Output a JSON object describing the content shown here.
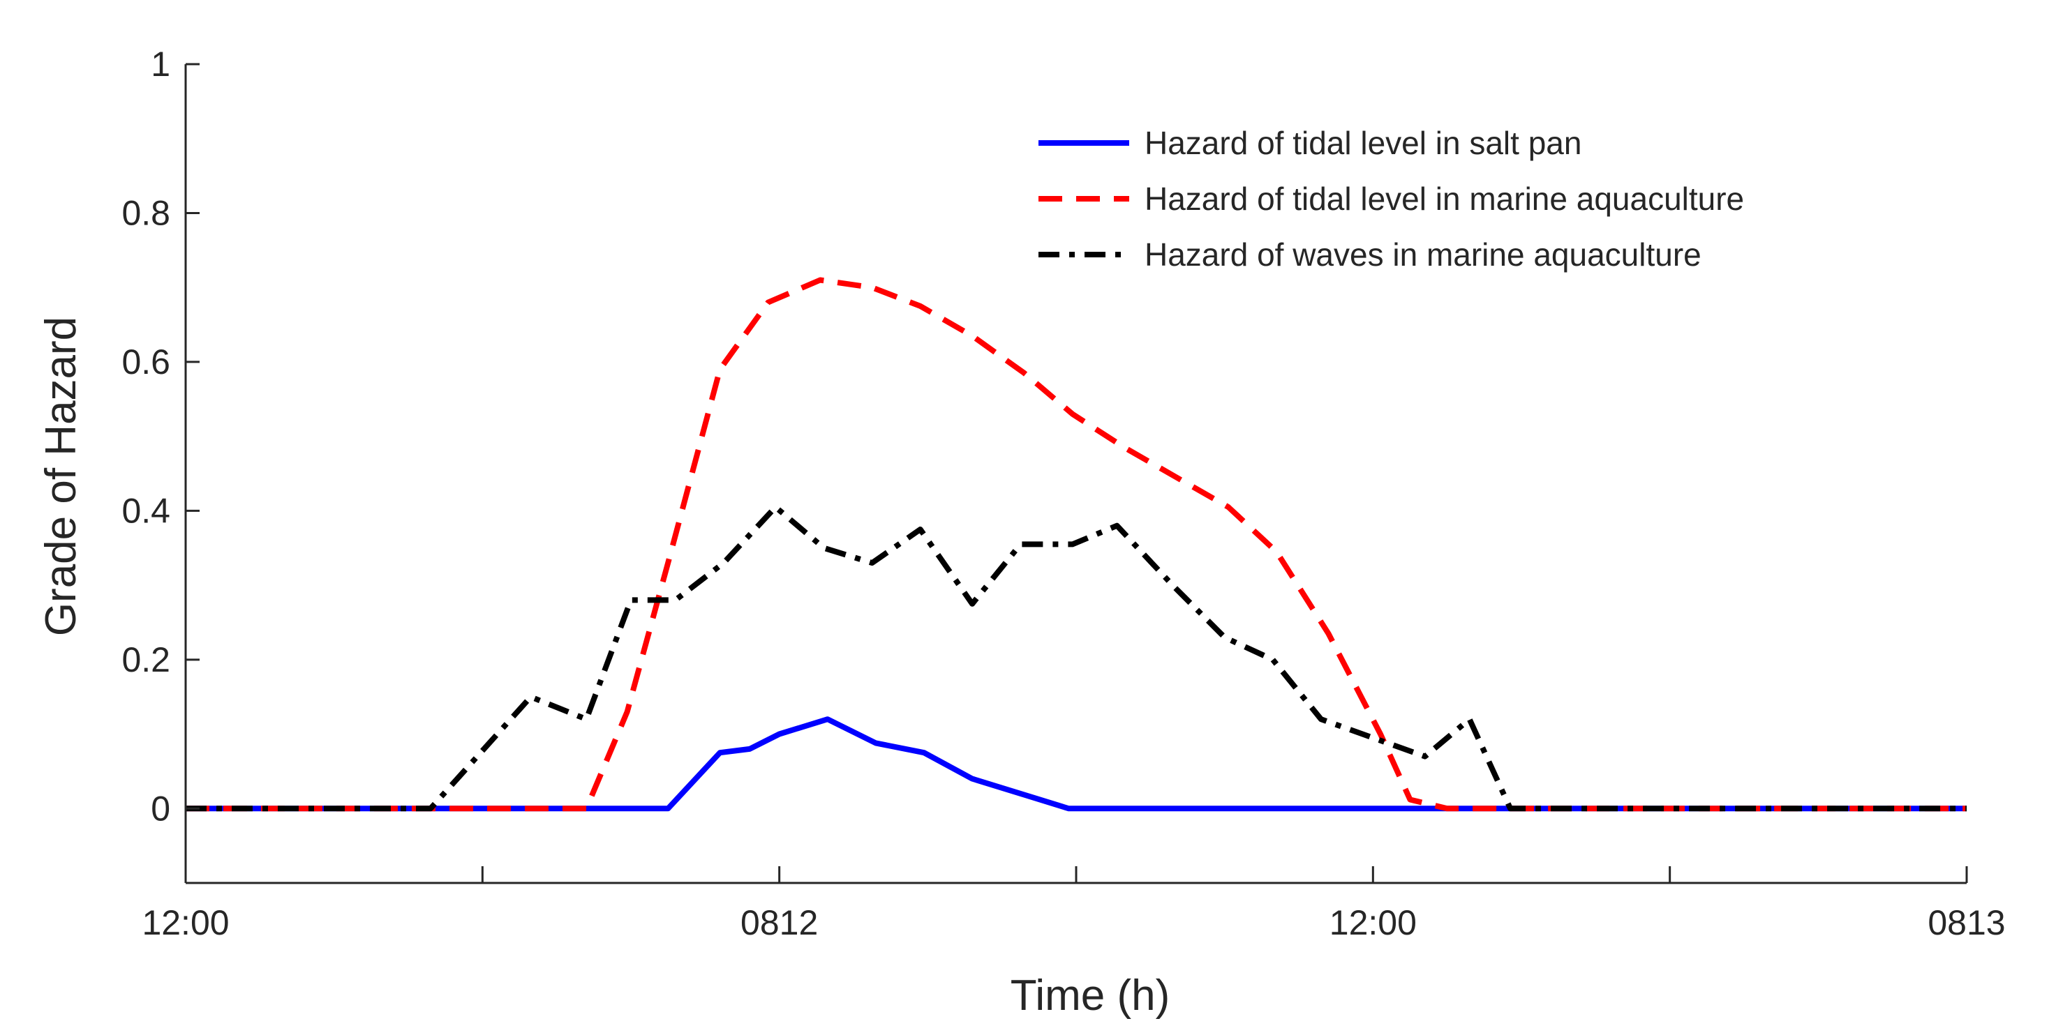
{
  "chart_data": {
    "type": "line",
    "title": "",
    "xlabel": "Time (h)",
    "ylabel": "Grade of Hazard",
    "xlim": [
      0,
      48
    ],
    "ylim": [
      -0.1,
      1
    ],
    "grid": false,
    "legend_position": "top-right",
    "x_ticks": [
      0,
      8,
      16,
      24,
      32,
      40,
      48
    ],
    "x_tick_labels": [
      "12:00",
      "",
      "0812",
      "",
      "12:00",
      "",
      "0813"
    ],
    "y_ticks": [
      0,
      0.2,
      0.4,
      0.6,
      0.8,
      1
    ],
    "y_tick_labels": [
      "0",
      "0.2",
      "0.4",
      "0.6",
      "0.8",
      "1"
    ],
    "series": [
      {
        "name": "Hazard of tidal level in salt pan",
        "color": "#0000ff",
        "style": "solid",
        "x": [
          0,
          2,
          4,
          6,
          8,
          10,
          12,
          13,
          14.4,
          15.2,
          16,
          17.3,
          18.6,
          19.9,
          21.2,
          22.5,
          23.8,
          25.1,
          26.4,
          27.7,
          29,
          30.3,
          31.6,
          32.9,
          34.2,
          35.5,
          36.8,
          38.1,
          39.4,
          40.7,
          42,
          43.3,
          44.6,
          45.9,
          48
        ],
        "y": [
          0,
          0,
          0,
          0,
          0,
          0,
          0,
          0,
          0.075,
          0.08,
          0.1,
          0.12,
          0.088,
          0.075,
          0.04,
          0.02,
          0,
          0,
          0,
          0,
          0,
          0,
          0,
          0,
          0,
          0,
          0,
          0,
          0,
          0,
          0,
          0,
          0,
          0,
          0
        ]
      },
      {
        "name": "Hazard of tidal level in marine aquaculture",
        "color": "#ff0000",
        "style": "dashed",
        "x": [
          0,
          2,
          4,
          6,
          8,
          10,
          10.8,
          11.9,
          13,
          14.4,
          15.7,
          17.1,
          18.5,
          19.8,
          21.2,
          22.6,
          23.9,
          25.3,
          26.7,
          28.1,
          29.4,
          30.8,
          32.2,
          33,
          34,
          35,
          37,
          40,
          44,
          48
        ],
        "y": [
          0,
          0,
          0,
          0,
          0,
          0,
          0,
          0.13,
          0.33,
          0.59,
          0.68,
          0.71,
          0.7,
          0.675,
          0.635,
          0.585,
          0.53,
          0.485,
          0.445,
          0.405,
          0.345,
          0.235,
          0.1,
          0.012,
          0,
          0,
          0,
          0,
          0,
          0
        ]
      },
      {
        "name": "Hazard of waves in marine aquaculture",
        "color": "#000000",
        "style": "dash-dot",
        "x": [
          0,
          2,
          4,
          6,
          6.6,
          9.3,
          10.8,
          12,
          13.2,
          14.5,
          15.9,
          17.2,
          18.5,
          19.8,
          21.2,
          22.5,
          23.9,
          25.1,
          26.6,
          28,
          29.3,
          30.6,
          32,
          33.4,
          34.6,
          35.7,
          37,
          40,
          44,
          48
        ],
        "y": [
          0,
          0,
          0,
          0,
          0,
          0.15,
          0.12,
          0.28,
          0.28,
          0.33,
          0.405,
          0.35,
          0.33,
          0.375,
          0.275,
          0.355,
          0.355,
          0.38,
          0.3,
          0.23,
          0.2,
          0.12,
          0.095,
          0.07,
          0.12,
          0,
          0,
          0,
          0,
          0
        ]
      }
    ]
  }
}
